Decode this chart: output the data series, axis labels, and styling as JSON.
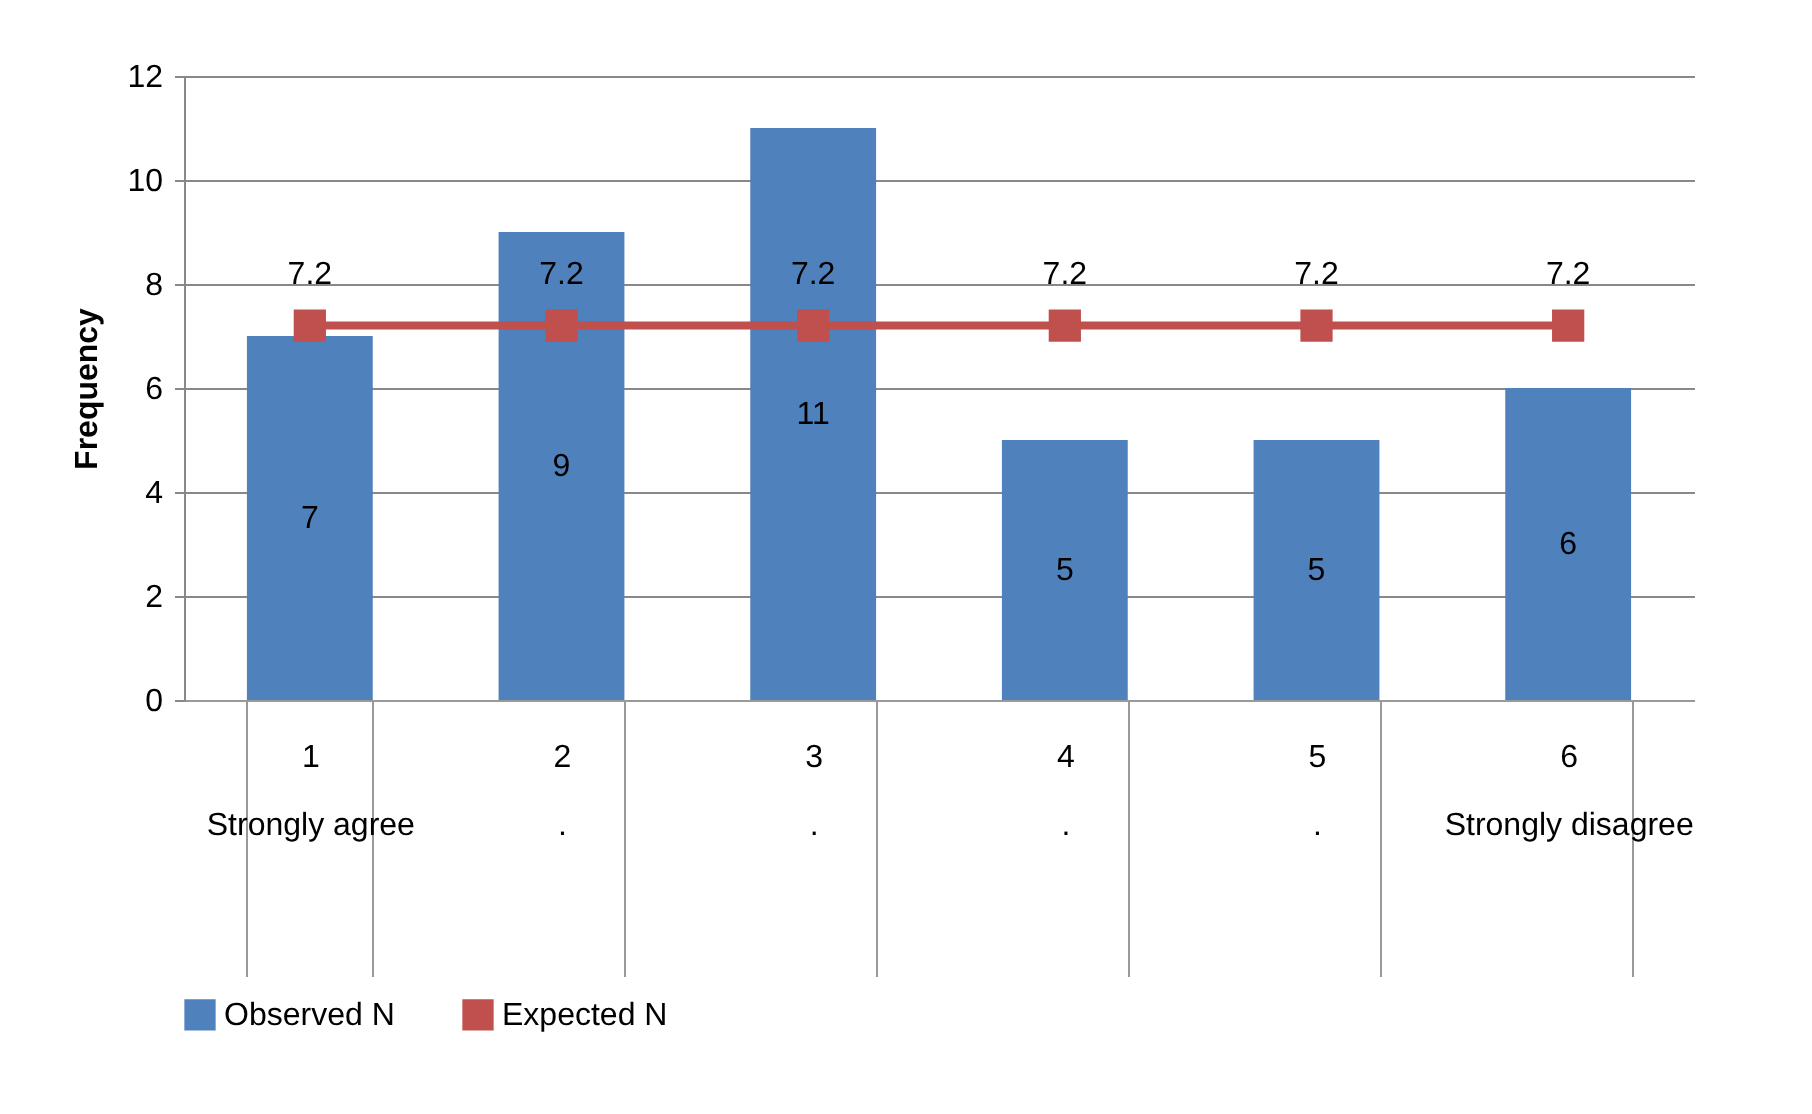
{
  "chart_data": {
    "type": "bar",
    "ylabel": "Frequency",
    "categories": [
      "1\nStrongly agree",
      "2\n.",
      "3\n.",
      "4\n.",
      "5\n.",
      "6\nStrongly disagree"
    ],
    "series": [
      {
        "name": "Observed N",
        "color": "#4f81bd",
        "values": [
          7,
          9,
          11,
          5,
          5,
          6
        ]
      },
      {
        "name": "Expected N",
        "type": "line",
        "color": "#c0504d",
        "values": [
          7.2,
          7.2,
          7.2,
          7.2,
          7.2,
          7.2
        ]
      }
    ],
    "ylim": [
      0,
      12
    ],
    "yticks": [
      0,
      2,
      4,
      6,
      8,
      10,
      12
    ],
    "grid": "y",
    "legend": "bottom",
    "marker": "square",
    "data_labels": true
  }
}
